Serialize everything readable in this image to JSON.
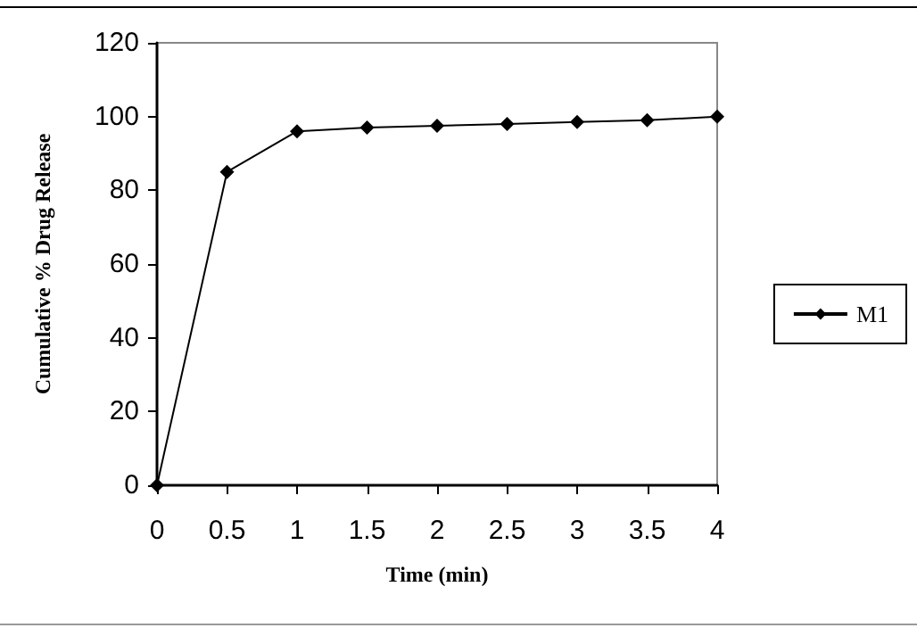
{
  "chart_data": {
    "type": "line",
    "xlabel": "Time (min)",
    "ylabel": "Cumulative % Drug Release",
    "x": [
      0,
      0.5,
      1,
      1.5,
      2,
      2.5,
      3,
      3.5,
      4
    ],
    "series": [
      {
        "name": "M1",
        "color": "#000000",
        "values": [
          0,
          85,
          96,
          97,
          97.5,
          98,
          98.5,
          99,
          100
        ]
      }
    ],
    "xlim": [
      0,
      4
    ],
    "xticks": [
      0,
      0.5,
      1,
      1.5,
      2,
      2.5,
      3,
      3.5,
      4
    ],
    "ylim": [
      0,
      120
    ],
    "yticks": [
      0,
      20,
      40,
      60,
      80,
      100,
      120
    ],
    "grid": false,
    "legend": "right",
    "marker": "diamond",
    "line_style": "solid"
  }
}
